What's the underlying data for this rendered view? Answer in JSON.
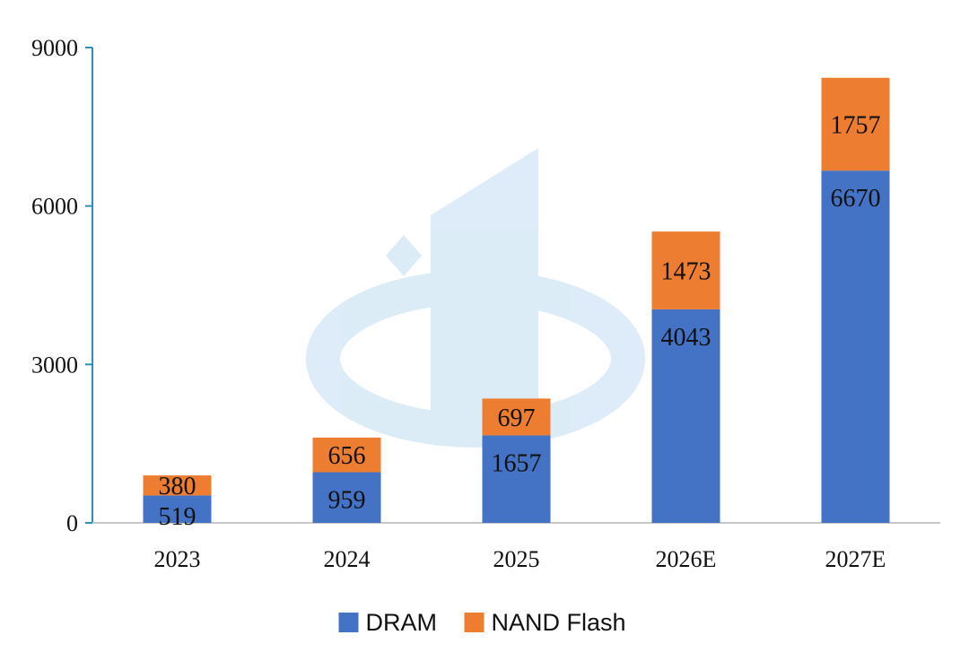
{
  "chart_data": {
    "type": "bar",
    "stacked": true,
    "title": "",
    "xlabel": "",
    "ylabel": "",
    "categories": [
      "2023",
      "2024",
      "2025",
      "2026E",
      "2027E"
    ],
    "series": [
      {
        "name": "DRAM",
        "color": "#4472C4",
        "values": [
          519,
          959,
          1657,
          4043,
          6670
        ]
      },
      {
        "name": "NAND Flash",
        "color": "#ED7D31",
        "values": [
          380,
          656,
          697,
          1473,
          1757
        ]
      }
    ],
    "ylim": [
      0,
      9000
    ],
    "yticks": [
      0,
      3000,
      6000,
      9000
    ],
    "grid": false,
    "legend_position": "bottom-center"
  }
}
